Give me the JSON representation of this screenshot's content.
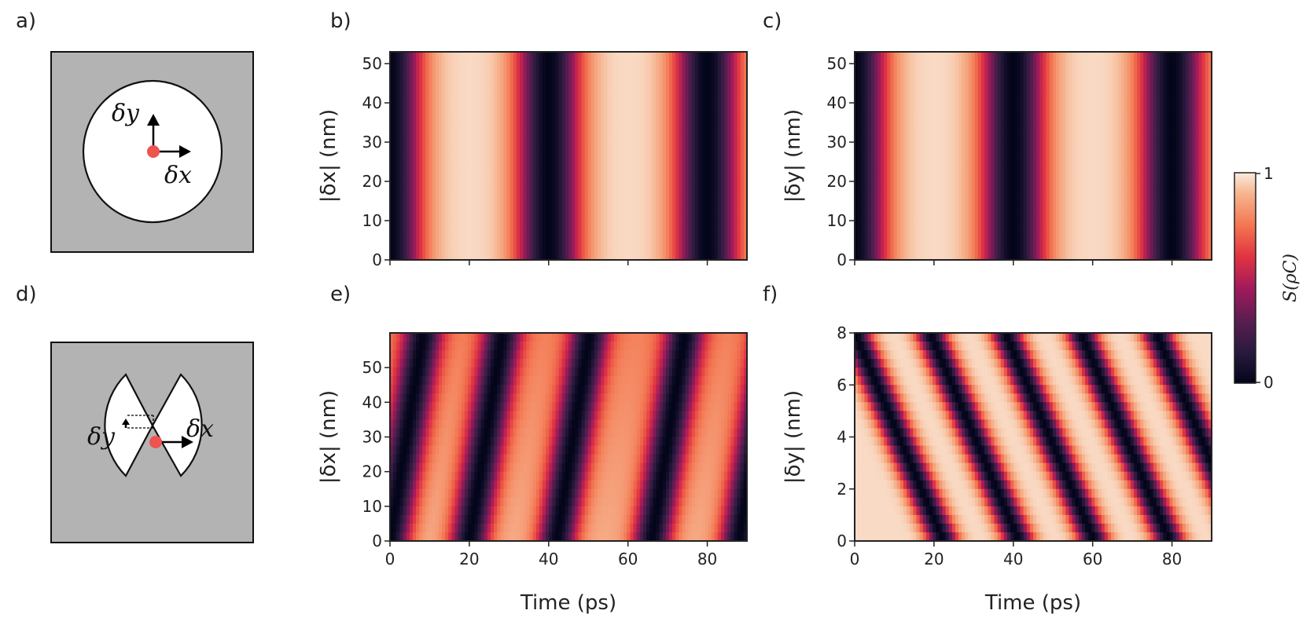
{
  "panel_labels": {
    "a": "a)",
    "b": "b)",
    "c": "c)",
    "d": "d)",
    "e": "e)",
    "f": "f)"
  },
  "schematic_a": {
    "label_dy": "δy",
    "label_dx": "δx"
  },
  "schematic_d": {
    "label_dy": "δy",
    "label_dx": "δx"
  },
  "colors": {
    "background": "#b3b3b3",
    "cavity": "#ffffff",
    "dot": "#ef5350",
    "outline": "#111111"
  },
  "colorbar": {
    "label": "S(ρC)",
    "ticks": [
      "1",
      "0"
    ],
    "colormap": "rocket",
    "range": [
      0,
      1
    ]
  },
  "chart_data": [
    {
      "id": "b",
      "type": "heatmap",
      "xlabel": "",
      "ylabel": "|δx| (nm)",
      "xlim": [
        0,
        90
      ],
      "ylim": [
        0,
        53
      ],
      "xticks": [
        0,
        20,
        40,
        60,
        80
      ],
      "xtick_labels": [
        "",
        "",
        "",
        "",
        ""
      ],
      "yticks": [
        0,
        10,
        20,
        30,
        40,
        50
      ],
      "ytick_labels": [
        "0",
        "10",
        "20",
        "30",
        "40",
        "50"
      ],
      "minima_time_ps": [
        0,
        40,
        80
      ],
      "period_ps": 40,
      "slope_ps_per_nm": 0
    },
    {
      "id": "c",
      "type": "heatmap",
      "xlabel": "",
      "ylabel": "|δy| (nm)",
      "xlim": [
        0,
        90
      ],
      "ylim": [
        0,
        53
      ],
      "xticks": [
        0,
        20,
        40,
        60,
        80
      ],
      "xtick_labels": [
        "",
        "",
        "",
        "",
        ""
      ],
      "yticks": [
        0,
        10,
        20,
        30,
        40,
        50
      ],
      "ytick_labels": [
        "0",
        "10",
        "20",
        "30",
        "40",
        "50"
      ],
      "minima_time_ps": [
        0,
        40,
        80
      ],
      "period_ps": 40,
      "slope_ps_per_nm": 0
    },
    {
      "id": "e",
      "type": "heatmap",
      "xlabel": "Time (ps)",
      "ylabel": "|δx| (nm)",
      "xlim": [
        0,
        90
      ],
      "ylim": [
        0,
        60
      ],
      "xticks": [
        0,
        20,
        40,
        60,
        80
      ],
      "xtick_labels": [
        "0",
        "20",
        "40",
        "60",
        "80"
      ],
      "yticks": [
        0,
        10,
        20,
        30,
        40,
        50
      ],
      "ytick_labels": [
        "0",
        "10",
        "20",
        "30",
        "40",
        "50"
      ],
      "minima_time_ps": [
        0,
        20,
        42,
        66,
        88
      ],
      "period_ps": 24,
      "slope_ps_per_nm": 0.14
    },
    {
      "id": "f",
      "type": "heatmap",
      "xlabel": "Time (ps)",
      "ylabel": "|δy| (nm)",
      "xlim": [
        0,
        90
      ],
      "ylim": [
        0,
        8
      ],
      "xticks": [
        0,
        20,
        40,
        60,
        80
      ],
      "xtick_labels": [
        "0",
        "20",
        "40",
        "60",
        "80"
      ],
      "yticks": [
        0,
        2,
        4,
        6,
        8
      ],
      "ytick_labels": [
        "0",
        "2",
        "4",
        "6",
        "8"
      ],
      "minima_time_ps": [
        0,
        19,
        38,
        57,
        76
      ],
      "period_ps": 19,
      "slope_ps_per_nm": 0.7
    }
  ]
}
